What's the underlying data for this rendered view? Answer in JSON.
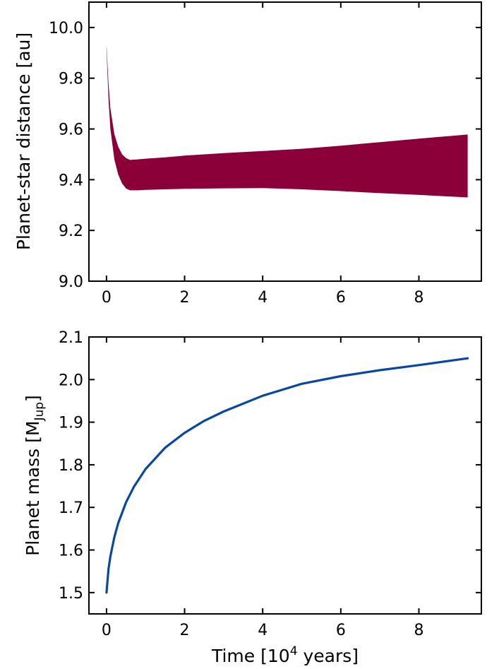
{
  "chart_data": [
    {
      "type": "area",
      "ylabel": "Planet-star distance [au]",
      "xlabel": "",
      "xlim": [
        -0.45,
        9.6
      ],
      "ylim": [
        9.0,
        10.1
      ],
      "xticks": [
        "0",
        "2",
        "4",
        "6",
        "8"
      ],
      "yticks": [
        "9.0",
        "9.2",
        "9.4",
        "9.6",
        "9.8",
        "10.0"
      ],
      "color": "#8b0038",
      "series": [
        {
          "x": [
            0,
            0.05,
            0.1,
            0.2,
            0.3,
            0.4,
            0.5,
            0.6,
            0.8,
            1.0,
            1.5,
            2,
            3,
            4,
            5,
            6,
            7,
            8,
            9.25
          ],
          "upper": [
            9.93,
            9.78,
            9.68,
            9.58,
            9.53,
            9.5,
            9.485,
            9.478,
            9.48,
            9.483,
            9.488,
            9.495,
            9.505,
            9.513,
            9.522,
            9.534,
            9.548,
            9.562,
            9.578
          ],
          "lower": [
            9.91,
            9.72,
            9.6,
            9.48,
            9.42,
            9.385,
            9.365,
            9.358,
            9.358,
            9.36,
            9.362,
            9.364,
            9.366,
            9.367,
            9.362,
            9.355,
            9.347,
            9.34,
            9.33
          ]
        }
      ]
    },
    {
      "type": "line",
      "ylabel": "Planet mass [M",
      "ylabel_sub": "Jup",
      "ylabel_tail": "]",
      "xlabel": "Time [10",
      "xlabel_sup": "4",
      "xlabel_tail": " years]",
      "xlim": [
        -0.45,
        9.6
      ],
      "ylim": [
        1.45,
        2.1
      ],
      "xticks": [
        "0",
        "2",
        "4",
        "6",
        "8"
      ],
      "yticks": [
        "1.5",
        "1.6",
        "1.7",
        "1.8",
        "1.9",
        "2.0",
        "2.1"
      ],
      "color": "#0a47a0",
      "series": [
        {
          "x": [
            0,
            0.05,
            0.1,
            0.2,
            0.3,
            0.5,
            0.7,
            1.0,
            1.5,
            2.0,
            2.5,
            3.0,
            4.0,
            5.0,
            6.0,
            7.0,
            8.0,
            9.25
          ],
          "y": [
            1.5,
            1.555,
            1.585,
            1.63,
            1.663,
            1.712,
            1.748,
            1.79,
            1.84,
            1.875,
            1.903,
            1.925,
            1.962,
            1.99,
            2.008,
            2.022,
            2.034,
            2.05
          ]
        }
      ]
    }
  ]
}
